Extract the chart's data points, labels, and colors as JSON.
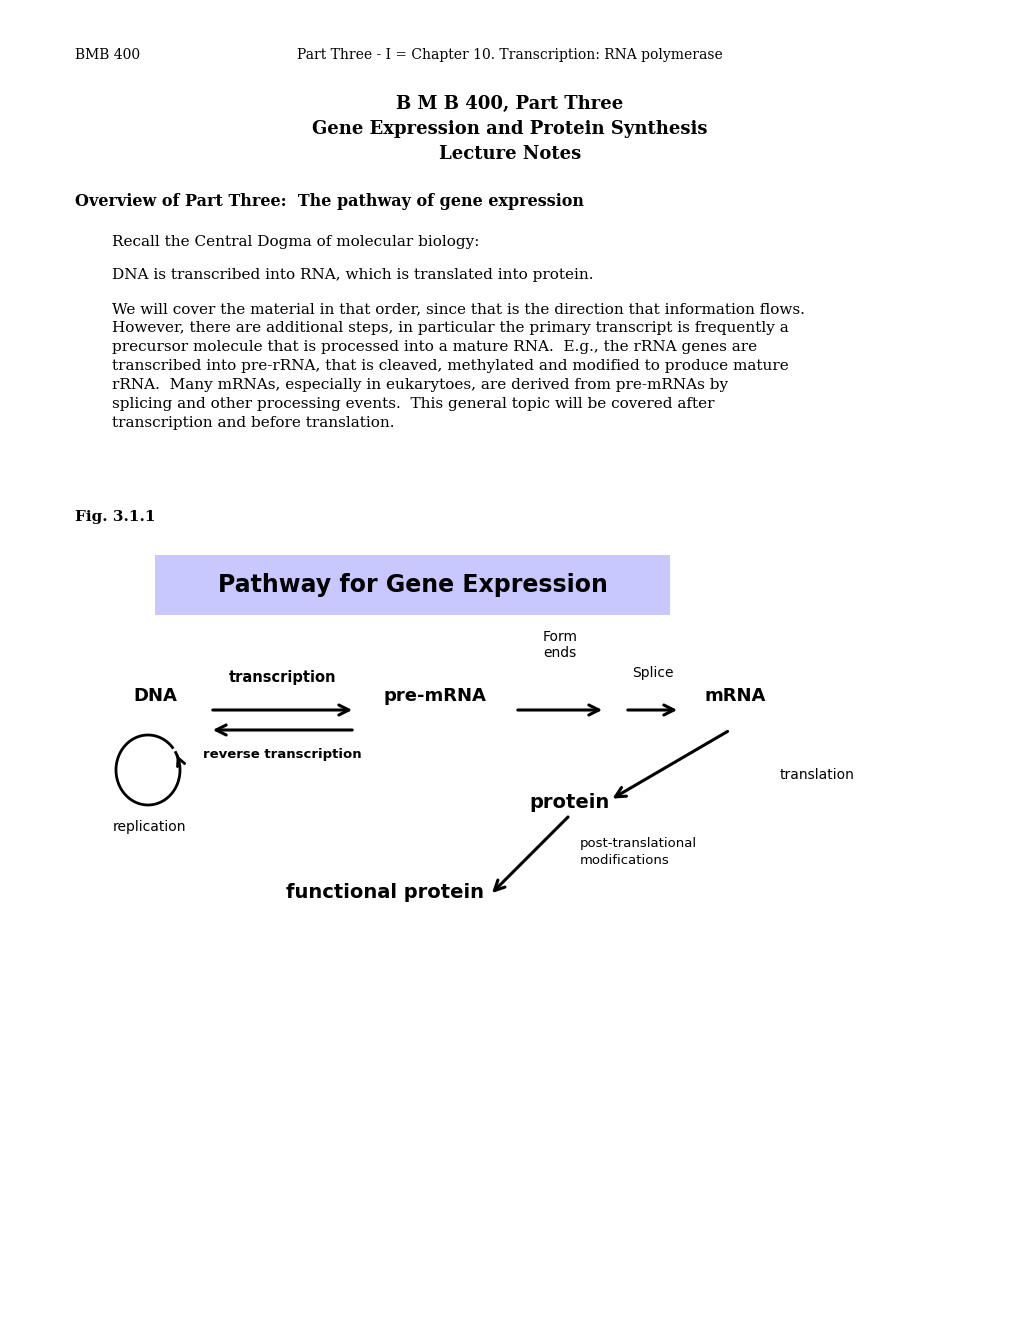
{
  "header_left": "BMB 400",
  "header_right": "Part Three - I = Chapter 10. Transcription: RNA polymerase",
  "title_line1": "B M B 400, Part Three",
  "title_line2": "Gene Expression and Protein Synthesis",
  "title_line3": "Lecture Notes",
  "overview_heading": "Overview of Part Three:  The pathway of gene expression",
  "para1": "Recall the Central Dogma of molecular biology:",
  "para2": "DNA is transcribed into RNA, which is translated into protein.",
  "para3": "We will cover the material in that order, since that is the direction that information flows.\nHowever, there are additional steps, in particular the primary transcript is frequently a\nprecursor molecule that is processed into a mature RNA.  E.g., the rRNA genes are\ntranscribed into pre-rRNA, that is cleaved, methylated and modified to produce mature\nrRNA.  Many mRNAs, especially in eukarytoes, are derived from pre-mRNAs by\nsplicing and other processing events.  This general topic will be covered after\ntranscription and before translation.",
  "fig_label": "Fig. 3.1.1",
  "pathway_title": "Pathway for Gene Expression",
  "pathway_bg": "#c8c8ff",
  "background_color": "#ffffff"
}
